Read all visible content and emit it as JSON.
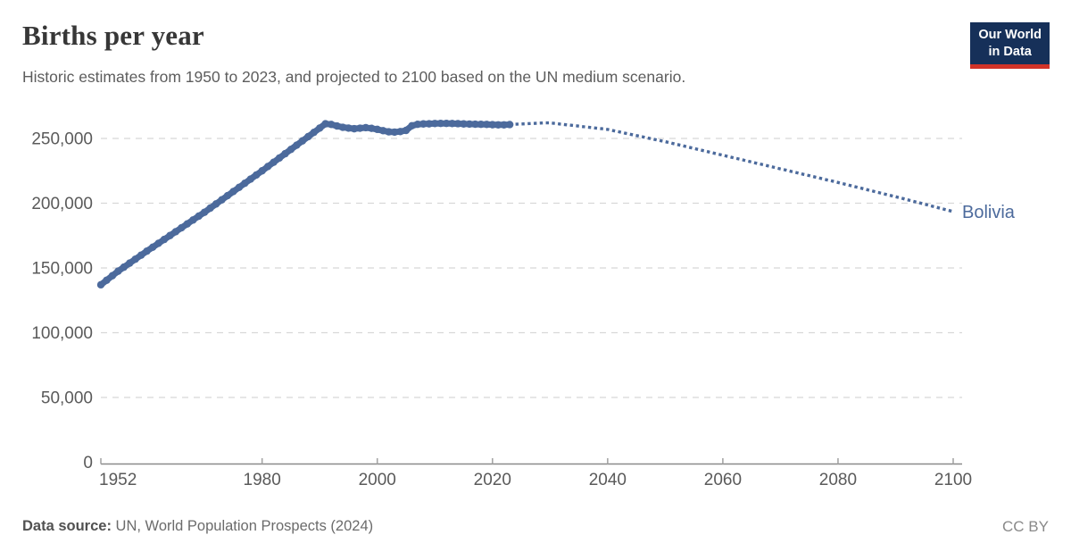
{
  "header": {
    "title": "Births per year",
    "subtitle": "Historic estimates from 1950 to 2023, and projected to 2100 based on the UN medium scenario."
  },
  "logo": {
    "line1": "Our World",
    "line2": "in Data"
  },
  "footer": {
    "source_label": "Data source:",
    "source_text": " UN, World Population Prospects (2024)",
    "license": "CC BY"
  },
  "colors": {
    "line": "#4c6a9c",
    "entity_label": "#4c6a9c",
    "grid": "#d8d8d8",
    "axis": "#8a8a8a",
    "tick": "#a6a6a6",
    "tick_text": "#5a5a5a",
    "logo_navy": "#163059",
    "logo_red": "#d13328"
  },
  "chart_data": {
    "type": "line",
    "title": "Births per year",
    "subtitle": "Historic estimates from 1950 to 2023, and projected to 2100 based on the UN medium scenario.",
    "entity": "Bolivia",
    "xlim": [
      1952,
      2100
    ],
    "ylim": [
      0,
      250000
    ],
    "grid": true,
    "legend_position": "end-of-line-label",
    "xticks": [
      1952,
      1980,
      2000,
      2020,
      2040,
      2060,
      2080,
      2100
    ],
    "yticks": [
      0,
      50000,
      100000,
      150000,
      200000,
      250000
    ],
    "ytick_labels": [
      "0",
      "50,000",
      "100,000",
      "150,000",
      "200,000",
      "250,000"
    ],
    "series": [
      {
        "name": "Bolivia — historic estimates",
        "style": "solid-dots",
        "start_year": 1952,
        "values": [
          137000,
          140500,
          144000,
          147500,
          150600,
          153700,
          156800,
          159900,
          163000,
          166000,
          169000,
          172000,
          175000,
          178000,
          181000,
          184000,
          187000,
          190000,
          193000,
          196200,
          199400,
          202600,
          205800,
          209000,
          212200,
          215400,
          218600,
          221800,
          225000,
          228300,
          231600,
          234900,
          238200,
          241500,
          244800,
          248100,
          251400,
          254700,
          258000,
          261300,
          260800,
          259600,
          258600,
          258000,
          257500,
          257900,
          258300,
          257800,
          257000,
          256000,
          255100,
          254900,
          255300,
          256200,
          259800,
          260900,
          261200,
          261300,
          261500,
          261600,
          261600,
          261500,
          261400,
          261200,
          261100,
          261000,
          260900,
          260800,
          260600,
          260500,
          260500,
          260700
        ]
      },
      {
        "name": "Bolivia — projected (UN medium scenario)",
        "style": "dotted",
        "start_year": 2024,
        "values": [
          261000,
          261200,
          261400,
          261600,
          261800,
          262000,
          262000,
          261500,
          261000,
          260500,
          260000,
          259500,
          259000,
          258500,
          258000,
          257500,
          257000,
          256000,
          255100,
          254100,
          253200,
          252200,
          251300,
          250300,
          249400,
          248400,
          247500,
          246500,
          245400,
          244400,
          243300,
          242300,
          241200,
          240200,
          239100,
          238100,
          237000,
          236000,
          234900,
          233900,
          232800,
          231800,
          230700,
          229700,
          228600,
          227600,
          226500,
          225500,
          224400,
          223400,
          222300,
          221300,
          220200,
          219200,
          218100,
          217100,
          216000,
          214900,
          213800,
          212700,
          211600,
          210500,
          209400,
          208300,
          207200,
          206100,
          205000,
          203900,
          202700,
          201600,
          200400,
          199300,
          198100,
          197000,
          195800,
          194700,
          193500
        ]
      }
    ],
    "series_label": {
      "text": "Bolivia"
    }
  }
}
